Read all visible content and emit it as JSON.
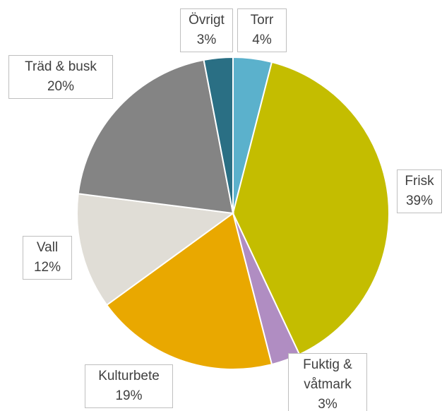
{
  "chart_data": {
    "type": "pie",
    "categories": [
      "Torr",
      "Frisk",
      "Fuktig & våtmark",
      "Kulturbete",
      "Vall",
      "Träd & busk",
      "Övrigt"
    ],
    "values": [
      4,
      39,
      3,
      19,
      12,
      20,
      3
    ],
    "value_labels": [
      "4%",
      "39%",
      "3%",
      "19%",
      "12%",
      "20%",
      "3%"
    ],
    "colors": [
      "#5bb1cc",
      "#c4bd00",
      "#b08dc2",
      "#e9a800",
      "#e0ddd6",
      "#848484",
      "#2a6f84"
    ]
  }
}
